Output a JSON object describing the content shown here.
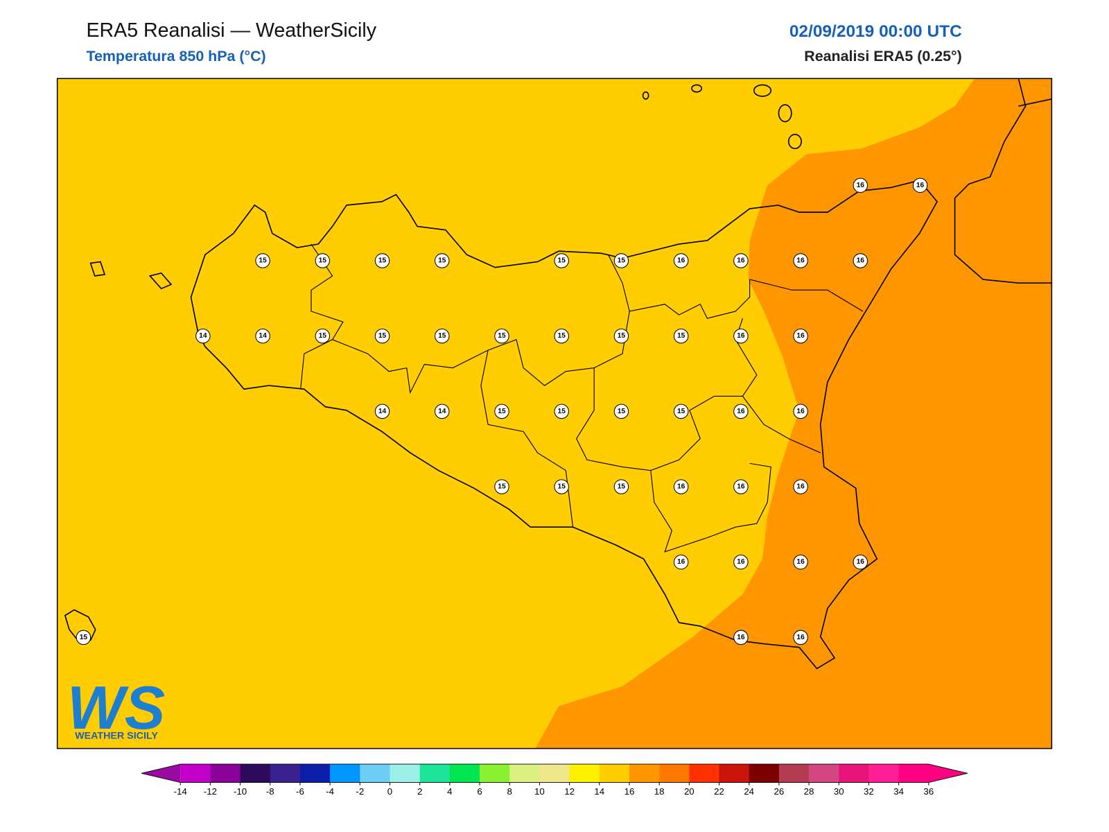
{
  "header": {
    "title": "ERA5 Reanalisi — WeatherSicily",
    "subtitle": "Temperatura 850 hPa (°C)",
    "date": "02/09/2019 00:00 UTC",
    "source": "Reanalisi ERA5 (0.25°)"
  },
  "station_grid": [
    [
      null,
      null,
      null,
      null,
      null,
      null,
      null,
      null,
      null,
      null,
      null,
      null,
      null,
      16,
      16
    ],
    [
      null,
      null,
      null,
      15,
      15,
      15,
      15,
      null,
      15,
      15,
      16,
      16,
      16,
      16,
      null
    ],
    [
      null,
      null,
      14,
      14,
      15,
      15,
      15,
      15,
      15,
      15,
      15,
      16,
      16,
      null,
      null
    ],
    [
      null,
      null,
      null,
      null,
      null,
      14,
      14,
      15,
      15,
      15,
      15,
      16,
      16,
      null,
      null
    ],
    [
      null,
      null,
      null,
      null,
      null,
      null,
      null,
      15,
      15,
      15,
      16,
      16,
      16,
      null,
      null
    ],
    [
      null,
      null,
      null,
      null,
      null,
      null,
      null,
      null,
      null,
      null,
      16,
      16,
      16,
      16,
      null
    ],
    [
      15,
      null,
      null,
      null,
      null,
      null,
      null,
      null,
      null,
      null,
      null,
      16,
      16,
      null,
      null
    ]
  ],
  "colorbar": {
    "ticks": [
      -14,
      -12,
      -10,
      -8,
      -6,
      -4,
      -2,
      0,
      2,
      4,
      6,
      8,
      10,
      12,
      14,
      16,
      18,
      20,
      22,
      24,
      26,
      28,
      30,
      32,
      34,
      36
    ],
    "under": "#9a0aa0",
    "over": "#ff0080",
    "colors": [
      "#c000c8",
      "#8b0099",
      "#2e0a5a",
      "#3a2190",
      "#0a1eaa",
      "#0096ff",
      "#6ccef5",
      "#9af0e6",
      "#1ee39b",
      "#00e650",
      "#8cf032",
      "#dcf082",
      "#f0e68c",
      "#fff000",
      "#ffcd00",
      "#ff9600",
      "#ff7800",
      "#ff3200",
      "#c8140a",
      "#7d0000",
      "#b43c50",
      "#d24682",
      "#e61478",
      "#ff1e96",
      "#ff0082"
    ]
  },
  "logo": {
    "mark": "WS",
    "name": "WEATHER SICILY"
  }
}
